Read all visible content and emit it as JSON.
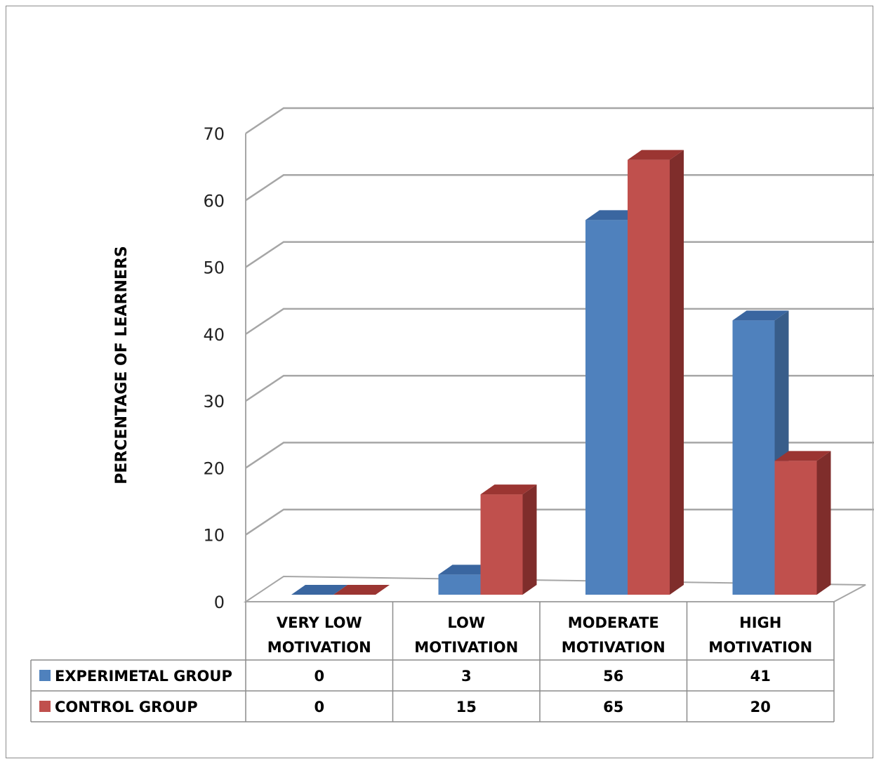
{
  "chart_data": {
    "type": "bar",
    "three_d": true,
    "categories": [
      "VERY LOW\nMOTIVATION",
      "LOW\nMOTIVATION",
      "MODERATE\nMOTIVATION",
      "HIGH\nMOTIVATION"
    ],
    "series": [
      {
        "name": "EXPERIMETAL GROUP",
        "values": [
          0,
          3,
          56,
          41
        ],
        "color": "#4f81bd",
        "side_color": "#385d8a",
        "top_color": "#3a66a0"
      },
      {
        "name": "CONTROL GROUP",
        "values": [
          0,
          15,
          65,
          20
        ],
        "color": "#c0504d",
        "side_color": "#7f2d2b",
        "top_color": "#9b3532"
      }
    ],
    "data_table": [
      {
        "series": "EXPERIMETAL GROUP",
        "values": [
          "0",
          "3",
          "56",
          "41"
        ]
      },
      {
        "series": "CONTROL GROUP",
        "values": [
          "0",
          "15",
          "65",
          "20"
        ]
      }
    ],
    "ylabel": "PERCENTAGE OF LEARNERS",
    "xlabel": "",
    "title": "",
    "ylim": [
      0,
      70
    ],
    "yticks": [
      "0",
      "10",
      "20",
      "30",
      "40",
      "50",
      "60",
      "70"
    ],
    "grid": true,
    "legend": "data table rows"
  }
}
